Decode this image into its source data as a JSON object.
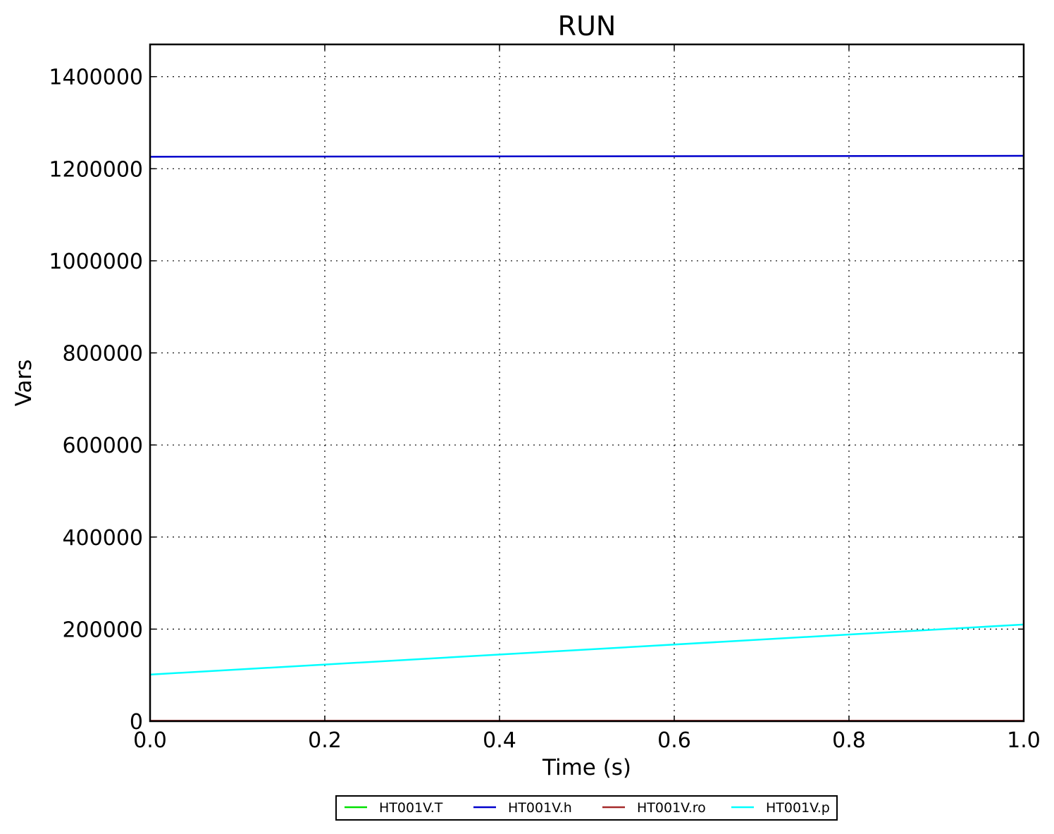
{
  "chart_data": {
    "type": "line",
    "title": "RUN",
    "xlabel": "Time (s)",
    "ylabel": "Vars",
    "xlim": [
      0.0,
      1.0
    ],
    "ylim": [
      0,
      1470000
    ],
    "x_ticks": [
      0.0,
      0.2,
      0.4,
      0.6,
      0.8,
      1.0
    ],
    "x_tick_labels": [
      "0.0",
      "0.2",
      "0.4",
      "0.6",
      "0.8",
      "1.0"
    ],
    "y_ticks": [
      0,
      200000,
      400000,
      600000,
      800000,
      1000000,
      1200000,
      1400000
    ],
    "y_tick_labels": [
      "0",
      "200000",
      "400000",
      "600000",
      "800000",
      "1000000",
      "1200000",
      "1400000"
    ],
    "grid": true,
    "legend_position": "bottom-center",
    "series": [
      {
        "name": "HT001V.T",
        "color": "#00e000",
        "x": [
          0.0,
          1.0
        ],
        "y": [
          300,
          300
        ]
      },
      {
        "name": "HT001V.h",
        "color": "#0000cc",
        "x": [
          0.0,
          1.0
        ],
        "y": [
          1226000,
          1228000
        ]
      },
      {
        "name": "HT001V.ro",
        "color": "#a52a2a",
        "x": [
          0.0,
          1.0
        ],
        "y": [
          900,
          900
        ]
      },
      {
        "name": "HT001V.p",
        "color": "#00ffff",
        "x": [
          0.0,
          1.0
        ],
        "y": [
          101325,
          210000
        ]
      }
    ]
  }
}
